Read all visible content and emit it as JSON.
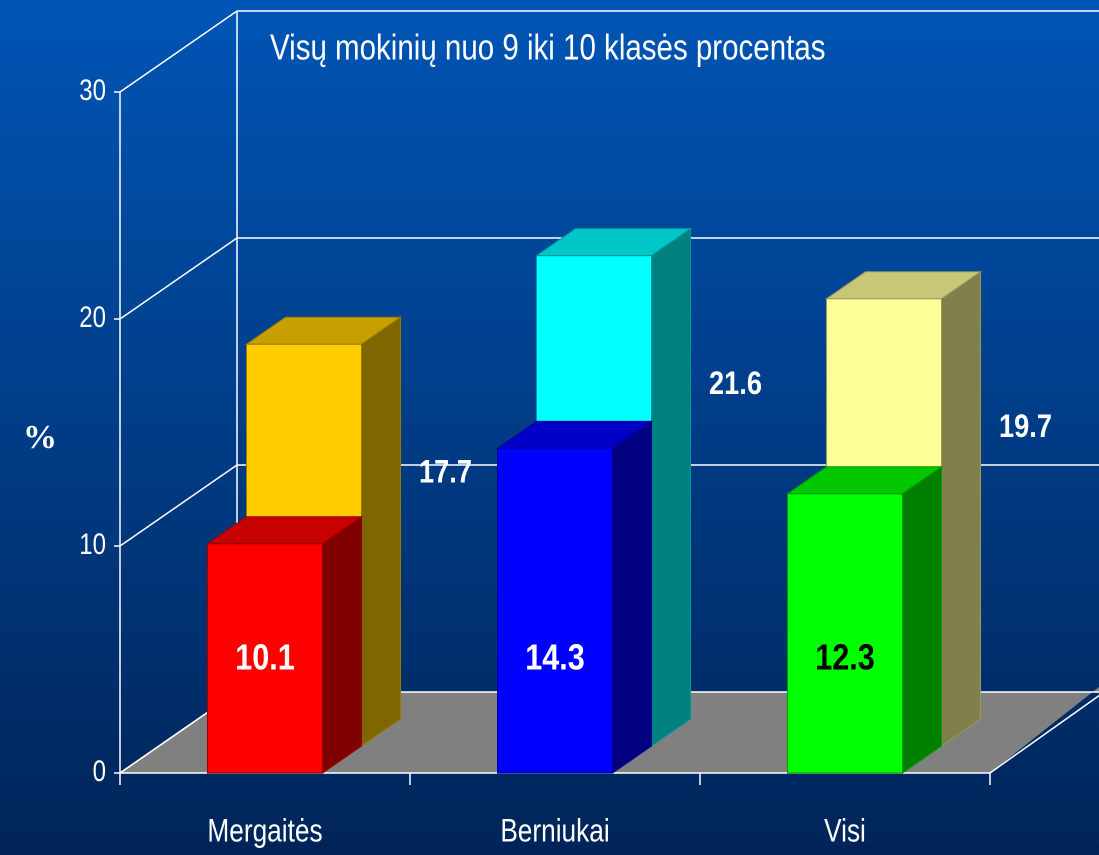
{
  "chart_data": {
    "type": "bar3d",
    "title": "Visų mokinių nuo 9 iki 10 klasės procentas",
    "y_label": "%",
    "categories": [
      "Mergaitės",
      "Berniukai",
      "Visi"
    ],
    "series": [
      {
        "colors": [
          "#ffcc00",
          "#00ffff",
          "#ffff99"
        ],
        "values": [
          17.7,
          21.6,
          19.7
        ]
      },
      {
        "colors": [
          "#ff0000",
          "#0000ff",
          "#00ff00"
        ],
        "values": [
          10.1,
          14.3,
          12.3
        ]
      }
    ],
    "ylim": [
      0,
      30
    ],
    "yticks": [
      0,
      10,
      20,
      30
    ],
    "grid": true
  }
}
